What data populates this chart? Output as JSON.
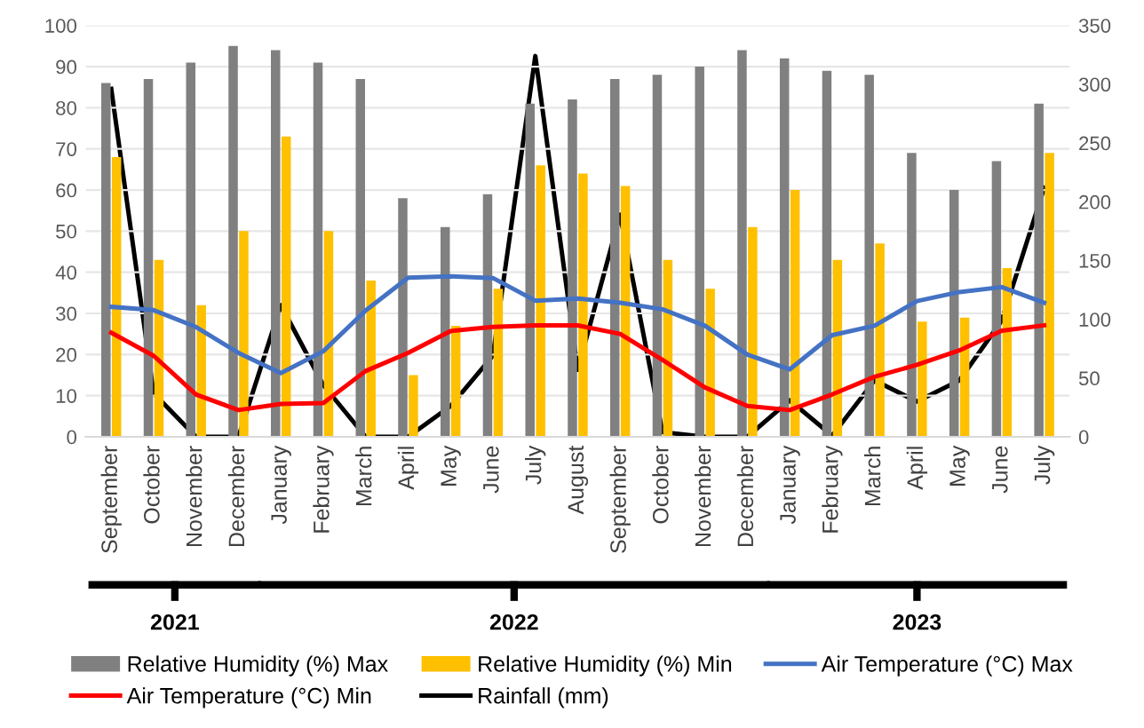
{
  "chart_data": {
    "type": "bar",
    "categories": [
      "September",
      "October",
      "November",
      "December",
      "January",
      "February",
      "March",
      "April",
      "May",
      "June",
      "July",
      "August",
      "September",
      "October",
      "November",
      "December",
      "January",
      "February",
      "March",
      "April",
      "May",
      "June",
      "July"
    ],
    "series": [
      {
        "name": "Relative Humidity (%) Max",
        "color": "#808080",
        "values": [
          86,
          87,
          91,
          95,
          94,
          91,
          87,
          58,
          51,
          59,
          81,
          82,
          87,
          88,
          90,
          94,
          92,
          89,
          88,
          69,
          60,
          67,
          81
        ]
      },
      {
        "name": "Relative Humidity (%) Min",
        "color": "#ffc000",
        "values": [
          68,
          43,
          32,
          50,
          73,
          50,
          38,
          15,
          27,
          36,
          66,
          64,
          61,
          43,
          36,
          51,
          60,
          43,
          47,
          28,
          29,
          41,
          69
        ]
      },
      {
        "name": "Air Temperature (°C) Max",
        "type": "line",
        "color": "#4472c4",
        "values": [
          31.6,
          30.8,
          26.7,
          20.4,
          15.5,
          20.8,
          30.7,
          38.7,
          39,
          38.6,
          33.1,
          33.6,
          32.6,
          31,
          27,
          20,
          16.4,
          24.7,
          27,
          33,
          35.2,
          36.4,
          32.6
        ]
      },
      {
        "name": "Air Temperature (°C) Min",
        "type": "line",
        "color": "#ff0000",
        "values": [
          25.3,
          19.7,
          10.3,
          6.5,
          8,
          8.2,
          16,
          20.4,
          25.7,
          26.7,
          27.1,
          27.1,
          25,
          18.7,
          12,
          7.5,
          6.5,
          10.3,
          14.6,
          17.5,
          21,
          25.8,
          27.1
        ]
      },
      {
        "name": "Rainfall (mm)",
        "type": "line",
        "color": "#000000",
        "axis": "y2",
        "values": [
          296,
          37,
          0,
          0,
          112,
          44,
          0,
          0,
          26,
          69,
          324,
          57,
          189,
          4,
          0,
          0,
          31,
          1,
          48,
          30,
          48,
          99,
          212
        ]
      }
    ],
    "ylim": [
      0,
      100
    ],
    "yticks": [
      0,
      10,
      20,
      30,
      40,
      50,
      60,
      70,
      80,
      90,
      100
    ],
    "y2lim": [
      0,
      350
    ],
    "y2ticks": [
      0,
      50,
      100,
      150,
      200,
      250,
      300,
      350
    ],
    "grid": "y",
    "legend": "bottom",
    "annotations": [
      "2021",
      "2022",
      "2023"
    ]
  }
}
